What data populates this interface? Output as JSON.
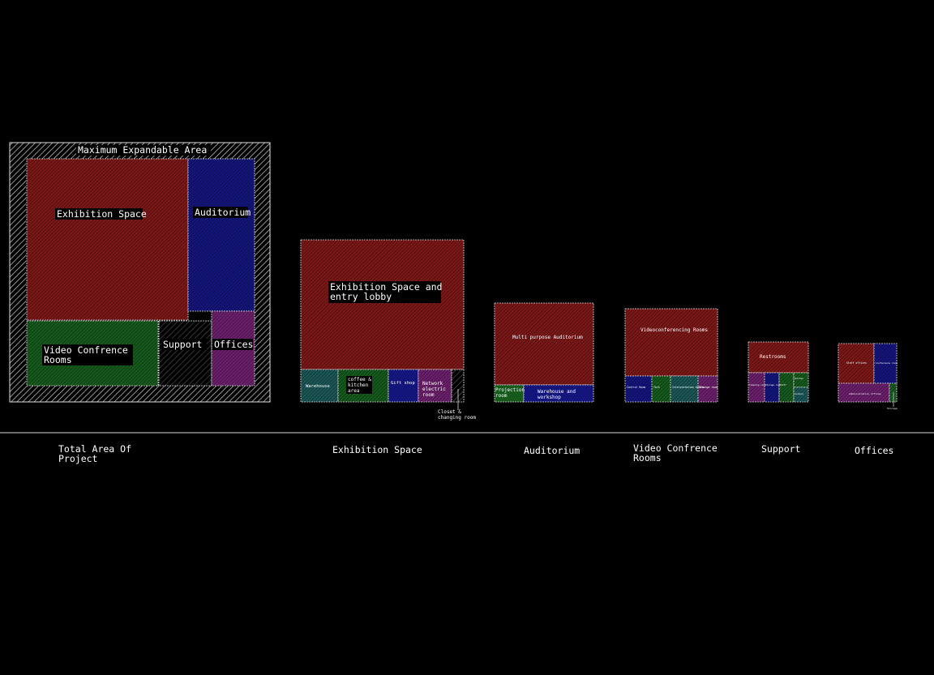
{
  "colors": {
    "background": "#000000",
    "exhibition": "#7a1717",
    "auditorium": "#14157a",
    "video": "#15591c",
    "support": "#6a1f6a",
    "offices": "#6a1f6a",
    "teal": "#1b5555",
    "outline": "#e0e0e0",
    "label": "#ffffff"
  },
  "overall": {
    "max_area_label": "Maximum Expandable Area",
    "exhibition_label": "Exhibition Space",
    "auditorium_label": "Auditorium",
    "video_label": "Video Confrence Rooms",
    "support_label": "Support",
    "offices_label": "Offices"
  },
  "exhibition_detail": {
    "main_label": "Exhibition Space and entry lobby",
    "warehouse_label": "Warehouse",
    "coffee_label": "coffee & kitchen area",
    "gift_label": "Gift shop",
    "network_label": "Network electric room",
    "closet_label": "Closet & changing room"
  },
  "auditorium_detail": {
    "main_label": "Multi purpose Auditorium",
    "projection_label": "Projection room",
    "warehouse_label": "Warehouse and workshop"
  },
  "video_detail": {
    "main_label": "Videoconferencing Rooms",
    "small_labels": [
      "Control Room",
      "Tech",
      "Interpretation booths",
      "Storage room"
    ]
  },
  "support_detail": {
    "main_label": "Restrooms",
    "small_labels": [
      "Cleaning room",
      "Storage room",
      "Staff",
      "Kitchen",
      "Lockers"
    ]
  },
  "offices_detail": {
    "small_labels": [
      "Staff offices",
      "Conference room",
      "Administration offices",
      "Storage"
    ]
  },
  "captions": {
    "total": "Total Area Of Project",
    "exhibition": "Exhibition Space",
    "auditorium": "Auditorium",
    "video": "Video Confrence Rooms",
    "support": "Support",
    "offices": "Offices"
  }
}
